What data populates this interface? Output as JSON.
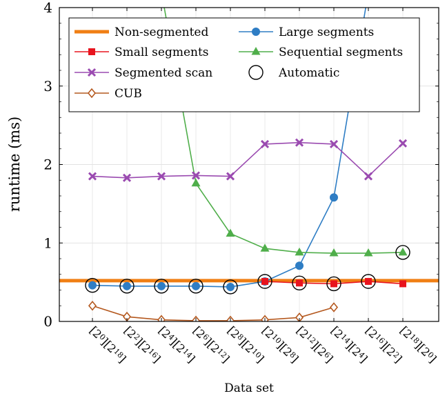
{
  "chart_data": {
    "type": "line",
    "xlabel": "Data set",
    "ylabel": "runtime (ms)",
    "ylim": [
      0,
      4
    ],
    "yticks": [
      0,
      1,
      2,
      3,
      4
    ],
    "grid": true,
    "legend_position": "top-left",
    "categories": [
      "[2^0][2^18]",
      "[2^2][2^16]",
      "[2^4][2^14]",
      "[2^6][2^12]",
      "[2^8][2^10]",
      "[2^10][2^8]",
      "[2^12][2^6]",
      "[2^14][2^4]",
      "[2^16][2^2]",
      "[2^18][2^0]"
    ],
    "category_parts": [
      [
        "0",
        "18"
      ],
      [
        "2",
        "16"
      ],
      [
        "4",
        "14"
      ],
      [
        "6",
        "12"
      ],
      [
        "8",
        "10"
      ],
      [
        "10",
        "8"
      ],
      [
        "12",
        "6"
      ],
      [
        "14",
        "4"
      ],
      [
        "16",
        "2"
      ],
      [
        "18",
        "0"
      ]
    ],
    "series": [
      {
        "name": "Non-segmented",
        "color": "#f07f14",
        "marker": "none",
        "values": [
          0.52,
          0.52,
          0.52,
          0.52,
          0.52,
          0.52,
          0.52,
          0.52,
          0.52,
          0.52
        ]
      },
      {
        "name": "Large segments",
        "color": "#2e7dc4",
        "marker": "circle",
        "values": [
          0.46,
          0.45,
          0.45,
          0.45,
          0.44,
          0.51,
          0.71,
          1.58,
          4.2,
          null
        ]
      },
      {
        "name": "Small segments",
        "color": "#e8141e",
        "marker": "square",
        "values": [
          null,
          null,
          null,
          null,
          null,
          0.51,
          0.49,
          0.48,
          0.51,
          0.48
        ]
      },
      {
        "name": "Sequential segments",
        "color": "#4fae4a",
        "marker": "triangle",
        "values": [
          null,
          null,
          4.2,
          1.76,
          1.12,
          0.93,
          0.88,
          0.87,
          0.87,
          0.88
        ]
      },
      {
        "name": "Segmented scan",
        "color": "#9a4ab0",
        "marker": "cross",
        "values": [
          1.85,
          1.83,
          1.85,
          1.86,
          1.85,
          2.26,
          2.28,
          2.26,
          1.85,
          2.27
        ]
      },
      {
        "name": "Automatic",
        "color": "#000000",
        "marker": "open-circle",
        "values": [
          0.46,
          0.45,
          0.45,
          0.45,
          0.44,
          0.51,
          0.49,
          0.48,
          0.51,
          0.88
        ]
      },
      {
        "name": "CUB",
        "color": "#b4581e",
        "marker": "diamond",
        "values": [
          0.2,
          0.06,
          0.02,
          0.01,
          0.01,
          0.02,
          0.05,
          0.18,
          null,
          null
        ]
      }
    ]
  }
}
